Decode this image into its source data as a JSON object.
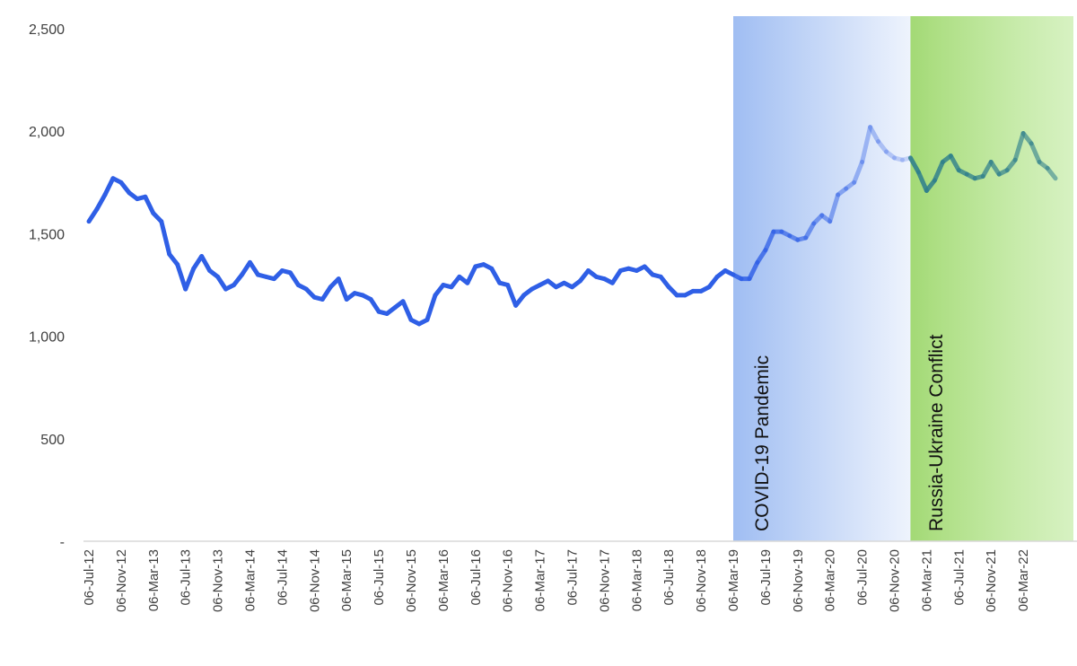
{
  "chart_data": {
    "type": "line",
    "title": "",
    "xlabel": "",
    "ylabel": "",
    "ylim": [
      0,
      2500
    ],
    "yticks": [
      {
        "value": 0,
        "label": "-"
      },
      {
        "value": 500,
        "label": "500"
      },
      {
        "value": 1000,
        "label": "1,000"
      },
      {
        "value": 1500,
        "label": "1,500"
      },
      {
        "value": 2000,
        "label": "2,000"
      },
      {
        "value": 2500,
        "label": "2,500"
      }
    ],
    "xticks": [
      "06-Jul-12",
      "06-Nov-12",
      "06-Mar-13",
      "06-Jul-13",
      "06-Nov-13",
      "06-Mar-14",
      "06-Jul-14",
      "06-Nov-14",
      "06-Mar-15",
      "06-Jul-15",
      "06-Nov-15",
      "06-Mar-16",
      "06-Jul-16",
      "06-Nov-16",
      "06-Mar-17",
      "06-Jul-17",
      "06-Nov-17",
      "06-Mar-18",
      "06-Jul-18",
      "06-Nov-18",
      "06-Mar-19",
      "06-Jul-19",
      "06-Nov-19",
      "06-Mar-20",
      "06-Jul-20",
      "06-Nov-20",
      "06-Mar-21",
      "06-Jul-21",
      "06-Nov-21",
      "06-Mar-22"
    ],
    "grid": false,
    "legend": "none",
    "series": [
      {
        "color": "#2f5fe6",
        "points": [
          [
            "06-Jul-12",
            1560
          ],
          [
            "06-Aug-12",
            1620
          ],
          [
            "06-Sep-12",
            1690
          ],
          [
            "06-Oct-12",
            1770
          ],
          [
            "06-Nov-12",
            1750
          ],
          [
            "06-Dec-12",
            1700
          ],
          [
            "06-Jan-13",
            1670
          ],
          [
            "06-Feb-13",
            1680
          ],
          [
            "06-Mar-13",
            1600
          ],
          [
            "06-Apr-13",
            1560
          ],
          [
            "06-May-13",
            1400
          ],
          [
            "06-Jun-13",
            1350
          ],
          [
            "06-Jul-13",
            1230
          ],
          [
            "06-Aug-13",
            1330
          ],
          [
            "06-Sep-13",
            1390
          ],
          [
            "06-Oct-13",
            1320
          ],
          [
            "06-Nov-13",
            1290
          ],
          [
            "06-Dec-13",
            1230
          ],
          [
            "06-Jan-14",
            1250
          ],
          [
            "06-Feb-14",
            1300
          ],
          [
            "06-Mar-14",
            1360
          ],
          [
            "06-Apr-14",
            1300
          ],
          [
            "06-May-14",
            1290
          ],
          [
            "06-Jun-14",
            1280
          ],
          [
            "06-Jul-14",
            1320
          ],
          [
            "06-Aug-14",
            1310
          ],
          [
            "06-Sep-14",
            1250
          ],
          [
            "06-Oct-14",
            1230
          ],
          [
            "06-Nov-14",
            1190
          ],
          [
            "06-Dec-14",
            1180
          ],
          [
            "06-Jan-15",
            1240
          ],
          [
            "06-Feb-15",
            1280
          ],
          [
            "06-Mar-15",
            1180
          ],
          [
            "06-Apr-15",
            1210
          ],
          [
            "06-May-15",
            1200
          ],
          [
            "06-Jun-15",
            1180
          ],
          [
            "06-Jul-15",
            1120
          ],
          [
            "06-Aug-15",
            1110
          ],
          [
            "06-Sep-15",
            1140
          ],
          [
            "06-Oct-15",
            1170
          ],
          [
            "06-Nov-15",
            1080
          ],
          [
            "06-Dec-15",
            1060
          ],
          [
            "06-Jan-16",
            1080
          ],
          [
            "06-Feb-16",
            1200
          ],
          [
            "06-Mar-16",
            1250
          ],
          [
            "06-Apr-16",
            1240
          ],
          [
            "06-May-16",
            1290
          ],
          [
            "06-Jun-16",
            1260
          ],
          [
            "06-Jul-16",
            1340
          ],
          [
            "06-Aug-16",
            1350
          ],
          [
            "06-Sep-16",
            1330
          ],
          [
            "06-Oct-16",
            1260
          ],
          [
            "06-Nov-16",
            1250
          ],
          [
            "06-Dec-16",
            1150
          ],
          [
            "06-Jan-17",
            1200
          ],
          [
            "06-Feb-17",
            1230
          ],
          [
            "06-Mar-17",
            1250
          ],
          [
            "06-Apr-17",
            1270
          ],
          [
            "06-May-17",
            1240
          ],
          [
            "06-Jun-17",
            1260
          ],
          [
            "06-Jul-17",
            1240
          ],
          [
            "06-Aug-17",
            1270
          ],
          [
            "06-Sep-17",
            1320
          ],
          [
            "06-Oct-17",
            1290
          ],
          [
            "06-Nov-17",
            1280
          ],
          [
            "06-Dec-17",
            1260
          ],
          [
            "06-Jan-18",
            1320
          ],
          [
            "06-Feb-18",
            1330
          ],
          [
            "06-Mar-18",
            1320
          ],
          [
            "06-Apr-18",
            1340
          ],
          [
            "06-May-18",
            1300
          ],
          [
            "06-Jun-18",
            1290
          ],
          [
            "06-Jul-18",
            1240
          ],
          [
            "06-Aug-18",
            1200
          ],
          [
            "06-Sep-18",
            1200
          ],
          [
            "06-Oct-18",
            1220
          ],
          [
            "06-Nov-18",
            1220
          ],
          [
            "06-Dec-18",
            1240
          ],
          [
            "06-Jan-19",
            1290
          ],
          [
            "06-Feb-19",
            1320
          ],
          [
            "06-Mar-19",
            1300
          ],
          [
            "06-Apr-19",
            1280
          ],
          [
            "06-May-19",
            1280
          ],
          [
            "06-Jun-19",
            1360
          ],
          [
            "06-Jul-19",
            1420
          ],
          [
            "06-Aug-19",
            1510
          ],
          [
            "06-Sep-19",
            1510
          ],
          [
            "06-Oct-19",
            1490
          ],
          [
            "06-Nov-19",
            1470
          ],
          [
            "06-Dec-19",
            1480
          ],
          [
            "06-Jan-20",
            1550
          ],
          [
            "06-Feb-20",
            1590
          ],
          [
            "06-Mar-20",
            1560
          ],
          [
            "06-Apr-20",
            1690
          ],
          [
            "06-May-20",
            1720
          ],
          [
            "06-Jun-20",
            1750
          ],
          [
            "06-Jul-20",
            1850
          ],
          [
            "06-Aug-20",
            2020
          ],
          [
            "06-Sep-20",
            1950
          ],
          [
            "06-Oct-20",
            1900
          ],
          [
            "06-Nov-20",
            1870
          ],
          [
            "06-Dec-20",
            1860
          ],
          [
            "06-Jan-21",
            1870
          ],
          [
            "06-Feb-21",
            1800
          ],
          [
            "06-Mar-21",
            1710
          ],
          [
            "06-Apr-21",
            1760
          ],
          [
            "06-May-21",
            1850
          ],
          [
            "06-Jun-21",
            1880
          ],
          [
            "06-Jul-21",
            1810
          ],
          [
            "06-Aug-21",
            1790
          ],
          [
            "06-Sep-21",
            1770
          ],
          [
            "06-Oct-21",
            1780
          ],
          [
            "06-Nov-21",
            1850
          ],
          [
            "06-Dec-21",
            1790
          ],
          [
            "06-Jan-22",
            1810
          ],
          [
            "06-Feb-22",
            1860
          ],
          [
            "06-Mar-22",
            1990
          ],
          [
            "06-Apr-22",
            1940
          ],
          [
            "06-May-22",
            1850
          ],
          [
            "06-Jun-22",
            1820
          ],
          [
            "06-Jul-22",
            1770
          ]
        ]
      }
    ],
    "annotations": [
      {
        "label": "COVID-19 Pandemic",
        "from": "06-Mar-19",
        "to": "06-Jan-21",
        "color": "#7ea6ee"
      },
      {
        "label": "Russia-Ukraine Conflict",
        "from": "06-Jan-21",
        "to": "06-Jul-22",
        "color": "#a9dd7d"
      }
    ]
  }
}
